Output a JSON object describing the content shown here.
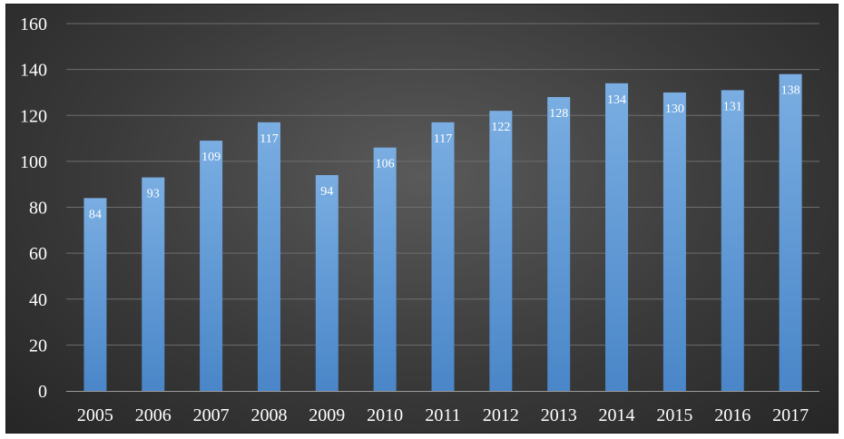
{
  "chart_data": {
    "type": "bar",
    "title": "",
    "xlabel": "",
    "ylabel": "",
    "categories": [
      "2005",
      "2006",
      "2007",
      "2008",
      "2009",
      "2010",
      "2011",
      "2012",
      "2013",
      "2014",
      "2015",
      "2016",
      "2017"
    ],
    "values": [
      84,
      93,
      109,
      117,
      94,
      106,
      117,
      122,
      128,
      134,
      130,
      131,
      138
    ],
    "ylim": [
      0,
      160
    ],
    "yticks": [
      0,
      20,
      40,
      60,
      80,
      100,
      120,
      140,
      160
    ],
    "grid": true,
    "legend": "none",
    "data_labels": true,
    "colors": {
      "background": "#3a3a3a",
      "bar_top": "#7aaee2",
      "bar_bottom": "#4a86c8",
      "text": "#ffffff",
      "gridline": "#6e6e6e"
    }
  }
}
